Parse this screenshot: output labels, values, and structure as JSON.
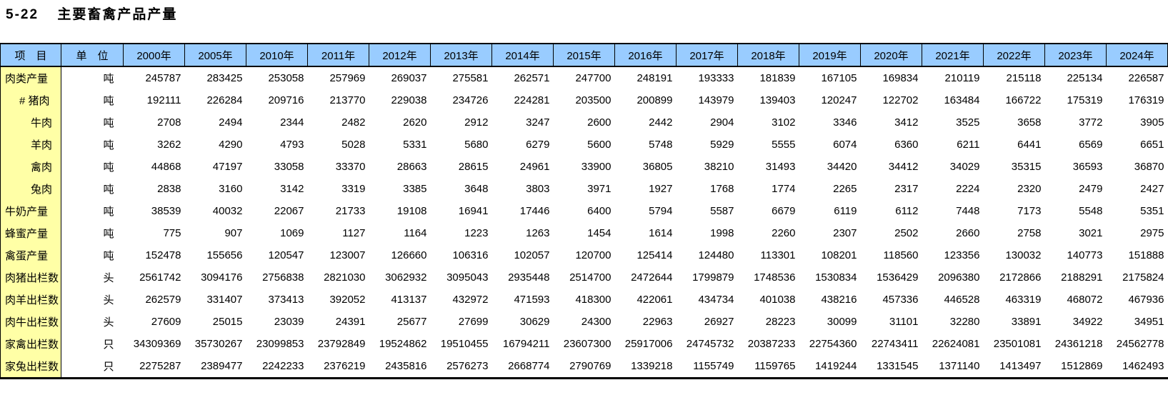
{
  "title": {
    "number": "5-22",
    "text": "主要畜禽产品产量"
  },
  "colors": {
    "header_bg": "#99CCFF",
    "label_bg": "#FFFFA6",
    "border": "#000000"
  },
  "table": {
    "header": {
      "item": "项　目",
      "unit": "单　位"
    },
    "years": [
      "2000年",
      "2005年",
      "2010年",
      "2011年",
      "2012年",
      "2013年",
      "2014年",
      "2015年",
      "2016年",
      "2017年",
      "2018年",
      "2019年",
      "2020年",
      "2021年",
      "2022年",
      "2023年",
      "2024年"
    ],
    "rows": [
      {
        "label": "肉类产量",
        "indent": 0,
        "unit": "吨",
        "values": [
          245787,
          283425,
          253058,
          257969,
          269037,
          275581,
          262571,
          247700,
          248191,
          193333,
          181839,
          167105,
          169834,
          210119,
          215118,
          225134,
          226587
        ]
      },
      {
        "label": "# 猪肉",
        "indent": 1,
        "unit": "吨",
        "values": [
          192111,
          226284,
          209716,
          213770,
          229038,
          234726,
          224281,
          203500,
          200899,
          143979,
          139403,
          120247,
          122702,
          163484,
          166722,
          175319,
          176319
        ]
      },
      {
        "label": "牛肉",
        "indent": 2,
        "unit": "吨",
        "values": [
          2708,
          2494,
          2344,
          2482,
          2620,
          2912,
          3247,
          2600,
          2442,
          2904,
          3102,
          3346,
          3412,
          3525,
          3658,
          3772,
          3905
        ]
      },
      {
        "label": "羊肉",
        "indent": 2,
        "unit": "吨",
        "values": [
          3262,
          4290,
          4793,
          5028,
          5331,
          5680,
          6279,
          5600,
          5748,
          5929,
          5555,
          6074,
          6360,
          6211,
          6441,
          6569,
          6651
        ]
      },
      {
        "label": "禽肉",
        "indent": 2,
        "unit": "吨",
        "values": [
          44868,
          47197,
          33058,
          33370,
          28663,
          28615,
          24961,
          33900,
          36805,
          38210,
          31493,
          34420,
          34412,
          34029,
          35315,
          36593,
          36870
        ]
      },
      {
        "label": "兔肉",
        "indent": 2,
        "unit": "吨",
        "values": [
          2838,
          3160,
          3142,
          3319,
          3385,
          3648,
          3803,
          3971,
          1927,
          1768,
          1774,
          2265,
          2317,
          2224,
          2320,
          2479,
          2427
        ]
      },
      {
        "label": "牛奶产量",
        "indent": 0,
        "unit": "吨",
        "values": [
          38539,
          40032,
          22067,
          21733,
          19108,
          16941,
          17446,
          6400,
          5794,
          5587,
          6679,
          6119,
          6112,
          7448,
          7173,
          5548,
          5351
        ]
      },
      {
        "label": "蜂蜜产量",
        "indent": 0,
        "unit": "吨",
        "values": [
          775,
          907,
          1069,
          1127,
          1164,
          1223,
          1263,
          1454,
          1614,
          1998,
          2260,
          2307,
          2502,
          2660,
          2758,
          3021,
          2975
        ]
      },
      {
        "label": "禽蛋产量",
        "indent": 0,
        "unit": "吨",
        "values": [
          152478,
          155656,
          120547,
          123007,
          126660,
          106316,
          102057,
          120700,
          125414,
          124480,
          113301,
          108201,
          118560,
          123356,
          130032,
          140773,
          151888
        ]
      },
      {
        "label": "肉猪出栏数",
        "indent": 0,
        "unit": "头",
        "values": [
          2561742,
          3094176,
          2756838,
          2821030,
          3062932,
          3095043,
          2935448,
          2514700,
          2472644,
          1799879,
          1748536,
          1530834,
          1536429,
          2096380,
          2172866,
          2188291,
          2175824
        ]
      },
      {
        "label": "肉羊出栏数",
        "indent": 0,
        "unit": "头",
        "values": [
          262579,
          331407,
          373413,
          392052,
          413137,
          432972,
          471593,
          418300,
          422061,
          434734,
          401038,
          438216,
          457336,
          446528,
          463319,
          468072,
          467936
        ]
      },
      {
        "label": "肉牛出栏数",
        "indent": 0,
        "unit": "头",
        "values": [
          27609,
          25015,
          23039,
          24391,
          25677,
          27699,
          30629,
          24300,
          22963,
          26927,
          28223,
          30099,
          31101,
          32280,
          33891,
          34922,
          34951
        ]
      },
      {
        "label": "家禽出栏数",
        "indent": 0,
        "unit": "只",
        "values": [
          34309369,
          35730267,
          23099853,
          23792849,
          19524862,
          19510455,
          16794211,
          23607300,
          25917006,
          24745732,
          20387233,
          22754360,
          22743411,
          22624081,
          23501081,
          24361218,
          24562778
        ]
      },
      {
        "label": "家兔出栏数",
        "indent": 0,
        "unit": "只",
        "values": [
          2275287,
          2389477,
          2242233,
          2376219,
          2435816,
          2576273,
          2668774,
          2790769,
          1339218,
          1155749,
          1159765,
          1419244,
          1331545,
          1371140,
          1413497,
          1512869,
          1462493
        ]
      }
    ]
  }
}
